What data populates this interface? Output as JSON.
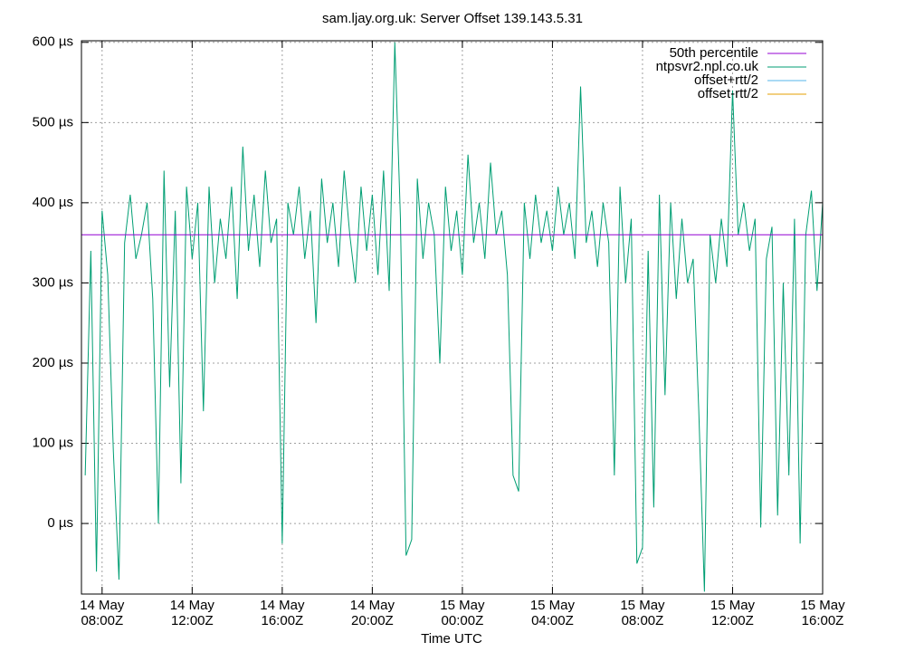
{
  "chart_data": {
    "type": "line",
    "title": "sam.ljay.org.uk: Server Offset 139.143.5.31",
    "x_label": "Time UTC",
    "xlim": [
      "14 May 07:05Z",
      "15 May 16:00Z"
    ],
    "ylim": [
      -88,
      602
    ],
    "xticks": [
      {
        "value": "14 May 08:00Z",
        "label": [
          "14 May",
          "08:00Z"
        ]
      },
      {
        "value": "14 May 12:00Z",
        "label": [
          "14 May",
          "12:00Z"
        ]
      },
      {
        "value": "14 May 16:00Z",
        "label": [
          "14 May",
          "16:00Z"
        ]
      },
      {
        "value": "14 May 20:00Z",
        "label": [
          "14 May",
          "20:00Z"
        ]
      },
      {
        "value": "15 May 00:00Z",
        "label": [
          "15 May",
          "00:00Z"
        ]
      },
      {
        "value": "15 May 04:00Z",
        "label": [
          "15 May",
          "04:00Z"
        ]
      },
      {
        "value": "15 May 08:00Z",
        "label": [
          "15 May",
          "08:00Z"
        ]
      },
      {
        "value": "15 May 12:00Z",
        "label": [
          "15 May",
          "12:00Z"
        ]
      },
      {
        "value": "15 May 16:00Z",
        "label": [
          "15 May",
          "16:00Z"
        ]
      }
    ],
    "yticks": [
      {
        "value": 0,
        "label": "0 µs"
      },
      {
        "value": 100,
        "label": "100 µs"
      },
      {
        "value": 200,
        "label": "200 µs"
      },
      {
        "value": 300,
        "label": "300 µs"
      },
      {
        "value": 400,
        "label": "400 µs"
      },
      {
        "value": 500,
        "label": "500 µs"
      },
      {
        "value": 600,
        "label": "600 µs"
      }
    ],
    "grid": true,
    "legend": "top-right",
    "series": [
      {
        "name": "50th percentile",
        "color": "#9400d3",
        "x": [
          "14 May 07:05Z",
          "15 May 16:00Z"
        ],
        "values": [
          360,
          360
        ]
      },
      {
        "name": "ntpsvr2.npl.co.uk",
        "color": "#009e73",
        "x": [
          "14 May 07:15Z",
          "14 May 07:30Z",
          "14 May 07:45Z",
          "14 May 08:00Z",
          "14 May 08:15Z",
          "14 May 08:30Z",
          "14 May 08:45Z",
          "14 May 09:00Z",
          "14 May 09:15Z",
          "14 May 09:30Z",
          "14 May 09:45Z",
          "14 May 10:00Z",
          "14 May 10:15Z",
          "14 May 10:30Z",
          "14 May 10:45Z",
          "14 May 11:00Z",
          "14 May 11:15Z",
          "14 May 11:30Z",
          "14 May 11:45Z",
          "14 May 12:00Z",
          "14 May 12:15Z",
          "14 May 12:30Z",
          "14 May 12:45Z",
          "14 May 13:00Z",
          "14 May 13:15Z",
          "14 May 13:30Z",
          "14 May 13:45Z",
          "14 May 14:00Z",
          "14 May 14:15Z",
          "14 May 14:30Z",
          "14 May 14:45Z",
          "14 May 15:00Z",
          "14 May 15:15Z",
          "14 May 15:30Z",
          "14 May 15:45Z",
          "14 May 16:00Z",
          "14 May 16:15Z",
          "14 May 16:30Z",
          "14 May 16:45Z",
          "14 May 17:00Z",
          "14 May 17:15Z",
          "14 May 17:30Z",
          "14 May 17:45Z",
          "14 May 18:00Z",
          "14 May 18:15Z",
          "14 May 18:30Z",
          "14 May 18:45Z",
          "14 May 19:00Z",
          "14 May 19:15Z",
          "14 May 19:30Z",
          "14 May 19:45Z",
          "14 May 20:00Z",
          "14 May 20:15Z",
          "14 May 20:30Z",
          "14 May 20:45Z",
          "14 May 21:00Z",
          "14 May 21:15Z",
          "14 May 21:30Z",
          "14 May 21:45Z",
          "14 May 22:00Z",
          "14 May 22:15Z",
          "14 May 22:30Z",
          "14 May 22:45Z",
          "14 May 23:00Z",
          "14 May 23:15Z",
          "14 May 23:30Z",
          "14 May 23:45Z",
          "15 May 00:00Z",
          "15 May 00:15Z",
          "15 May 00:30Z",
          "15 May 00:45Z",
          "15 May 01:00Z",
          "15 May 01:15Z",
          "15 May 01:30Z",
          "15 May 01:45Z",
          "15 May 02:00Z",
          "15 May 02:15Z",
          "15 May 02:30Z",
          "15 May 02:45Z",
          "15 May 03:00Z",
          "15 May 03:15Z",
          "15 May 03:30Z",
          "15 May 03:45Z",
          "15 May 04:00Z",
          "15 May 04:15Z",
          "15 May 04:30Z",
          "15 May 04:45Z",
          "15 May 05:00Z",
          "15 May 05:15Z",
          "15 May 05:30Z",
          "15 May 05:45Z",
          "15 May 06:00Z",
          "15 May 06:15Z",
          "15 May 06:30Z",
          "15 May 06:45Z",
          "15 May 07:00Z",
          "15 May 07:15Z",
          "15 May 07:30Z",
          "15 May 07:45Z",
          "15 May 08:00Z",
          "15 May 08:15Z",
          "15 May 08:30Z",
          "15 May 08:45Z",
          "15 May 09:00Z",
          "15 May 09:15Z",
          "15 May 09:30Z",
          "15 May 09:45Z",
          "15 May 10:00Z",
          "15 May 10:15Z",
          "15 May 10:30Z",
          "15 May 10:45Z",
          "15 May 11:00Z",
          "15 May 11:15Z",
          "15 May 11:30Z",
          "15 May 11:45Z",
          "15 May 12:00Z",
          "15 May 12:15Z",
          "15 May 12:30Z",
          "15 May 12:45Z",
          "15 May 13:00Z",
          "15 May 13:15Z",
          "15 May 13:30Z",
          "15 May 13:45Z",
          "15 May 14:00Z",
          "15 May 14:15Z",
          "15 May 14:30Z",
          "15 May 14:45Z",
          "15 May 15:00Z",
          "15 May 15:15Z",
          "15 May 15:30Z",
          "15 May 15:45Z",
          "15 May 16:00Z"
        ],
        "values": [
          60,
          340,
          -60,
          390,
          310,
          90,
          -70,
          350,
          410,
          330,
          360,
          400,
          280,
          0,
          440,
          170,
          390,
          50,
          420,
          330,
          400,
          140,
          420,
          300,
          380,
          330,
          420,
          280,
          470,
          340,
          410,
          320,
          440,
          350,
          380,
          -25,
          400,
          360,
          420,
          330,
          390,
          250,
          430,
          350,
          400,
          320,
          440,
          360,
          300,
          420,
          340,
          410,
          310,
          440,
          290,
          600,
          380,
          -40,
          -20,
          430,
          330,
          400,
          360,
          200,
          420,
          340,
          390,
          310,
          460,
          350,
          400,
          330,
          450,
          360,
          390,
          310,
          60,
          40,
          400,
          330,
          410,
          350,
          390,
          340,
          420,
          360,
          400,
          330,
          545,
          350,
          390,
          320,
          400,
          350,
          60,
          420,
          300,
          380,
          -50,
          -30,
          340,
          20,
          410,
          160,
          400,
          280,
          380,
          300,
          330,
          140,
          -85,
          360,
          300,
          380,
          320,
          540,
          360,
          400,
          340,
          380,
          -5,
          330,
          370,
          10,
          300,
          60,
          380,
          -25,
          360,
          415,
          290,
          400
        ]
      },
      {
        "name": "offset+rtt/2",
        "color": "#56b4e9"
      },
      {
        "name": "offset-rtt/2",
        "color": "#e69f00"
      }
    ]
  }
}
